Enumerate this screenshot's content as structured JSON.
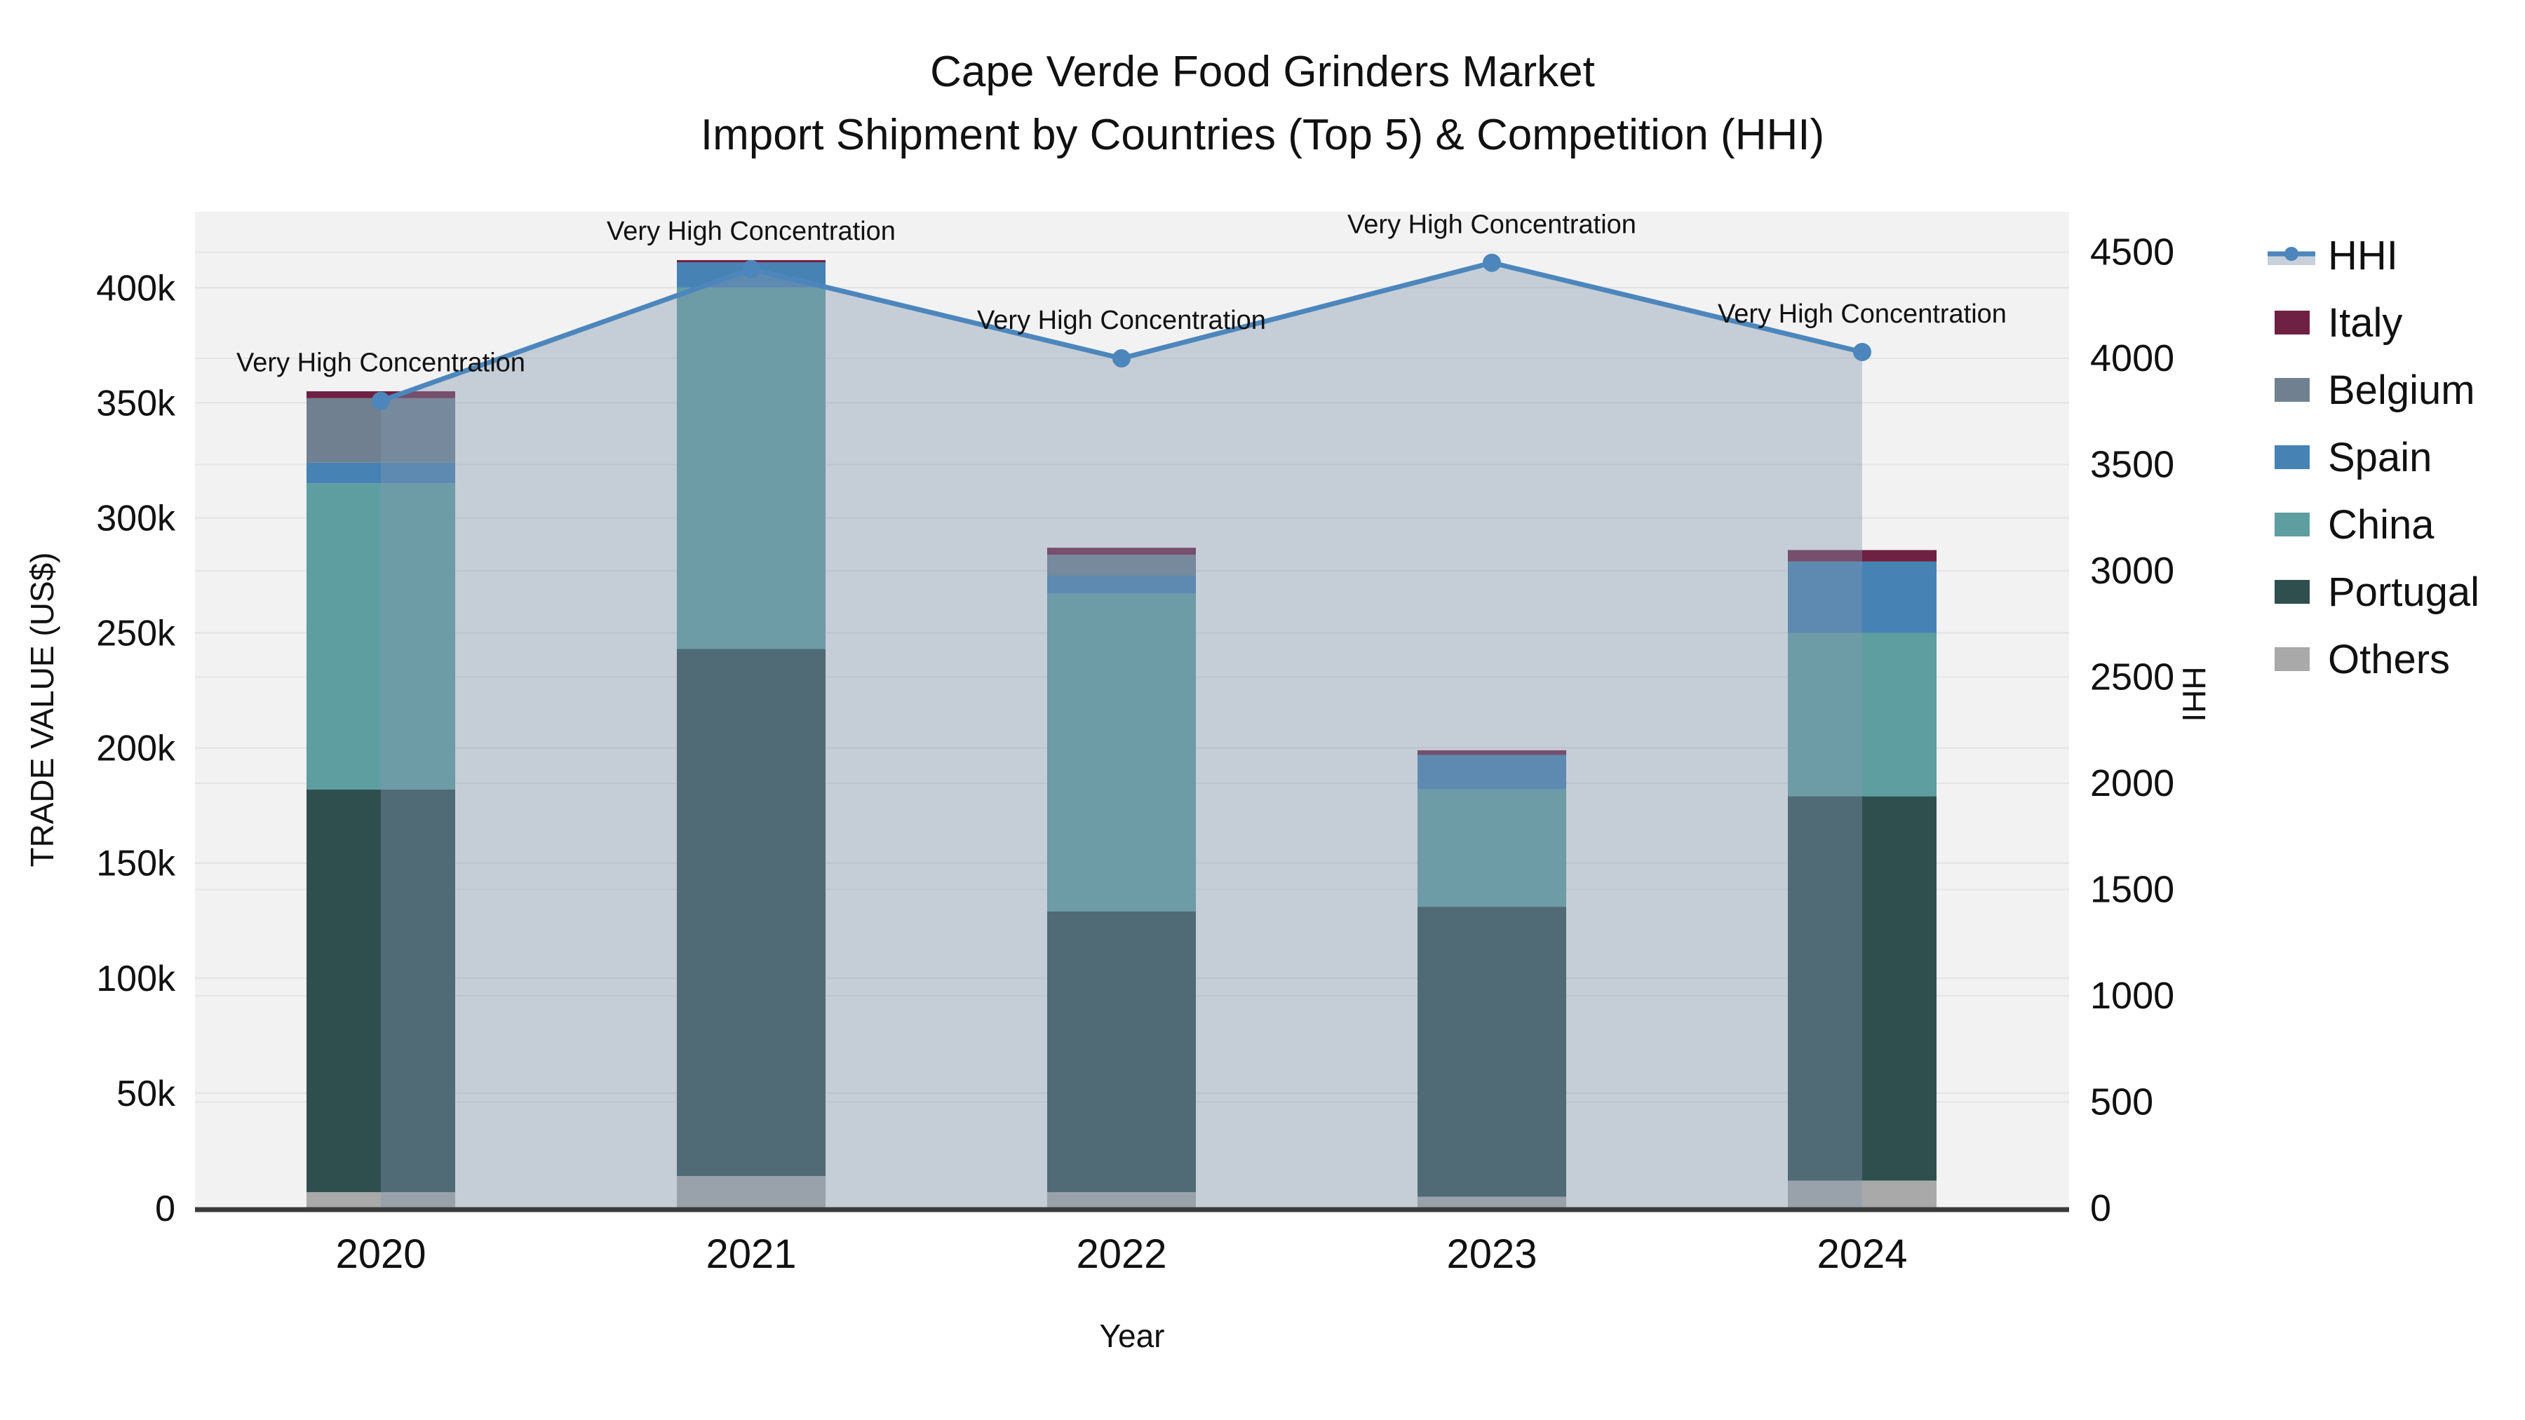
{
  "title": {
    "line1": "Cape Verde Food Grinders Market",
    "line2": "Import Shipment by Countries (Top 5) & Competition (HHI)"
  },
  "axes": {
    "x": {
      "title": "Year",
      "ticks": [
        "2020",
        "2021",
        "2022",
        "2023",
        "2024"
      ]
    },
    "y_left": {
      "title": "TRADE VALUE (US$)",
      "tick_values": [
        0,
        50,
        100,
        150,
        200,
        250,
        300,
        350,
        400
      ],
      "tick_labels": [
        "0",
        "50k",
        "100k",
        "150k",
        "200k",
        "250k",
        "300k",
        "350k",
        "400k"
      ],
      "max_value": 433
    },
    "y_right": {
      "title": "HHI",
      "tick_values": [
        0,
        500,
        1000,
        1500,
        2000,
        2500,
        3000,
        3500,
        4000,
        4500
      ],
      "tick_labels": [
        "0",
        "500",
        "1000",
        "1500",
        "2000",
        "2500",
        "3000",
        "3500",
        "4000",
        "4500"
      ],
      "max_value": 4690
    }
  },
  "annotation_label": "Very High Concentration",
  "legend": [
    {
      "label": "HHI",
      "type": "line"
    },
    {
      "label": "Italy",
      "type": "swatch",
      "color": "#6E2142"
    },
    {
      "label": "Belgium",
      "type": "swatch",
      "color": "#708090"
    },
    {
      "label": "Spain",
      "type": "swatch",
      "color": "#4682B4"
    },
    {
      "label": "China",
      "type": "swatch",
      "color": "#5F9EA0"
    },
    {
      "label": "Portugal",
      "type": "swatch",
      "color": "#2F4F4F"
    },
    {
      "label": "Others",
      "type": "swatch",
      "color": "#A9A9A9"
    }
  ],
  "colors": {
    "hhi_line": "#4C86BC",
    "hhi_fill": "#8296AF",
    "hhi_fill_opacity": 0.4,
    "plot_bg": "#F2F2F2",
    "gridline": "#E5E5E5",
    "zero_line": "#3A3A3A",
    "tick_text": "#111111",
    "annotation_text": "#111111"
  },
  "chart_data": {
    "type": "combo-stacked-bar-line",
    "title": "Cape Verde Food Grinders Market — Import Shipment by Countries (Top 5) & Competition (HHI)",
    "categories": [
      "2020",
      "2021",
      "2022",
      "2023",
      "2024"
    ],
    "bar_units": "thousand US$ (trade value)",
    "stack_order_bottom_to_top": [
      "Others",
      "Portugal",
      "China",
      "Spain",
      "Belgium",
      "Italy"
    ],
    "series": [
      {
        "name": "Others",
        "color": "#A9A9A9",
        "values": [
          7,
          14,
          7,
          5,
          12
        ]
      },
      {
        "name": "Portugal",
        "color": "#2F4F4F",
        "values": [
          175,
          229,
          122,
          126,
          167
        ]
      },
      {
        "name": "China",
        "color": "#5F9EA0",
        "values": [
          133,
          157,
          138,
          51,
          71
        ]
      },
      {
        "name": "Spain",
        "color": "#4682B4",
        "values": [
          9,
          11,
          8,
          15,
          31
        ]
      },
      {
        "name": "Belgium",
        "color": "#708090",
        "values": [
          28,
          0,
          9,
          0,
          0
        ]
      },
      {
        "name": "Italy",
        "color": "#6E2142",
        "values": [
          3,
          1,
          3,
          2,
          5
        ]
      }
    ],
    "bar_totals": [
      355,
      412,
      287,
      199,
      286
    ],
    "line_series": {
      "name": "HHI",
      "axis": "right",
      "values": [
        3800,
        4420,
        4000,
        4450,
        4030
      ],
      "point_annotations": [
        "Very High Concentration",
        "Very High Concentration",
        "Very High Concentration",
        "Very High Concentration",
        "Very High Concentration"
      ]
    },
    "xlabel": "Year",
    "ylabel_left": "TRADE VALUE (US$)",
    "ylabel_right": "HHI",
    "ylim_left": [
      0,
      433
    ],
    "ylim_right": [
      0,
      4690
    ],
    "legend_position": "right",
    "grid": true
  }
}
